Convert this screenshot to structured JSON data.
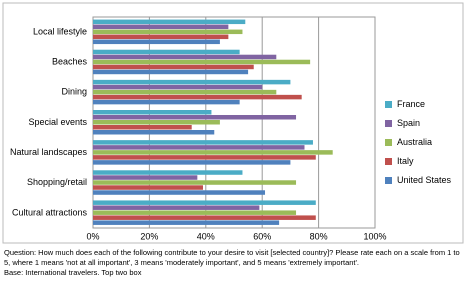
{
  "chart_data": {
    "type": "hbar",
    "categories": [
      "Local lifestyle",
      "Beaches",
      "Dining",
      "Special events",
      "Natural landscapes",
      "Shopping/retail",
      "Cultural attractions"
    ],
    "series": [
      {
        "name": "France",
        "color": "#4bacc6",
        "values": [
          54,
          52,
          70,
          42,
          78,
          53,
          79
        ]
      },
      {
        "name": "Spain",
        "color": "#8064a2",
        "values": [
          48,
          65,
          60,
          72,
          75,
          37,
          59
        ]
      },
      {
        "name": "Australia",
        "color": "#9bbb59",
        "values": [
          53,
          77,
          65,
          45,
          85,
          72,
          72
        ]
      },
      {
        "name": "Italy",
        "color": "#c0504d",
        "values": [
          48,
          57,
          74,
          35,
          79,
          39,
          79
        ]
      },
      {
        "name": "United States",
        "color": "#4f81bd",
        "values": [
          45,
          55,
          52,
          43,
          70,
          61,
          66
        ]
      }
    ],
    "xlim": [
      0,
      100
    ],
    "xticks": [
      {
        "value": 0,
        "label": "0%"
      },
      {
        "value": 20,
        "label": "20%"
      },
      {
        "value": 40,
        "label": "40%"
      },
      {
        "value": 60,
        "label": "60%"
      },
      {
        "value": 80,
        "label": "80%"
      },
      {
        "value": 100,
        "label": "100%"
      }
    ],
    "grid": true,
    "legend": "right",
    "note": "Question: How much does each of the following contribute to your desire to visit [selected country]?  Please rate each on a scale from 1 to 5, where 1 means 'not at all important', 3 means 'moderately important', and 5 means 'extremely important'.",
    "base": "Base: International travelers. Top two box"
  }
}
